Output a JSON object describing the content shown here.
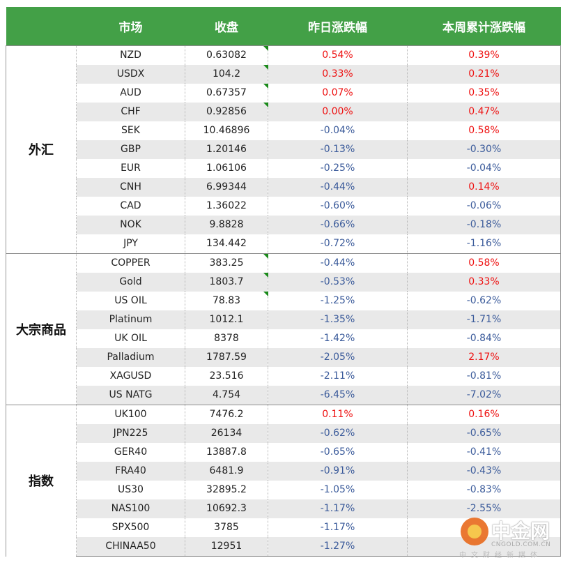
{
  "colors": {
    "header_bg": "#43a047",
    "header_text": "#ffffff",
    "up": "#ee1111",
    "down": "#3a5a9a",
    "stripe": "#e9e9e9",
    "flag": "#1a8a1a"
  },
  "headers": [
    "市场",
    "收盘",
    "昨日涨跌幅",
    "本周累计涨跌幅"
  ],
  "sections": [
    {
      "label": "外汇",
      "rows": [
        {
          "market": "NZD",
          "close": "0.63082",
          "flag": true,
          "day": "0.54%",
          "week": "0.39%"
        },
        {
          "market": "USDX",
          "close": "104.2",
          "flag": true,
          "day": "0.33%",
          "week": "0.21%"
        },
        {
          "market": "AUD",
          "close": "0.67357",
          "flag": true,
          "day": "0.07%",
          "week": "0.35%"
        },
        {
          "market": "CHF",
          "close": "0.92856",
          "flag": true,
          "day": "0.00%",
          "week": "0.47%"
        },
        {
          "market": "SEK",
          "close": "10.46896",
          "day": "-0.04%",
          "week": "0.58%"
        },
        {
          "market": "GBP",
          "close": "1.20146",
          "day": "-0.13%",
          "week": "-0.30%"
        },
        {
          "market": "EUR",
          "close": "1.06106",
          "day": "-0.25%",
          "week": "-0.04%"
        },
        {
          "market": "CNH",
          "close": "6.99344",
          "day": "-0.44%",
          "week": "0.14%"
        },
        {
          "market": "CAD",
          "close": "1.36022",
          "day": "-0.60%",
          "week": "-0.06%"
        },
        {
          "market": "NOK",
          "close": "9.8828",
          "day": "-0.66%",
          "week": "-0.18%"
        },
        {
          "market": "JPY",
          "close": "134.442",
          "day": "-0.72%",
          "week": "-1.16%"
        }
      ]
    },
    {
      "label": "大宗商品",
      "rows": [
        {
          "market": "COPPER",
          "close": "383.25",
          "flag": true,
          "day": "-0.44%",
          "week": "0.58%"
        },
        {
          "market": "Gold",
          "close": "1803.7",
          "flag": true,
          "day": "-0.53%",
          "week": "0.33%"
        },
        {
          "market": "US OIL",
          "close": "78.83",
          "flag": true,
          "day": "-1.25%",
          "week": "-0.62%"
        },
        {
          "market": "Platinum",
          "close": "1012.1",
          "day": "-1.35%",
          "week": "-1.71%"
        },
        {
          "market": "UK OIL",
          "close": "8378",
          "day": "-1.42%",
          "week": "-0.84%"
        },
        {
          "market": "Palladium",
          "close": "1787.59",
          "day": "-2.05%",
          "week": "2.17%"
        },
        {
          "market": "XAGUSD",
          "close": "23.516",
          "day": "-2.11%",
          "week": "-0.81%"
        },
        {
          "market": "US NATG",
          "close": "4.754",
          "day": "-6.45%",
          "week": "-7.02%"
        }
      ]
    },
    {
      "label": "指数",
      "rows": [
        {
          "market": "UK100",
          "close": "7476.2",
          "day": "0.11%",
          "week": "0.16%"
        },
        {
          "market": "JPN225",
          "close": "26134",
          "day": "-0.62%",
          "week": "-0.65%"
        },
        {
          "market": "GER40",
          "close": "13887.8",
          "day": "-0.65%",
          "week": "-0.41%"
        },
        {
          "market": "FRA40",
          "close": "6481.9",
          "day": "-0.91%",
          "week": "-0.43%"
        },
        {
          "market": "US30",
          "close": "32895.2",
          "day": "-1.05%",
          "week": "-0.83%"
        },
        {
          "market": "NAS100",
          "close": "10692.3",
          "day": "-1.17%",
          "week": "-2.55%"
        },
        {
          "market": "SPX500",
          "close": "3785",
          "day": "-1.17%",
          "week": ""
        },
        {
          "market": "CHINAA50",
          "close": "12951",
          "day": "-1.27%",
          "week": ""
        }
      ]
    }
  ],
  "watermark": {
    "brand": "中金网",
    "domain": "CNGOLD.COM.CN",
    "tagline": "中文财经新媒体"
  }
}
